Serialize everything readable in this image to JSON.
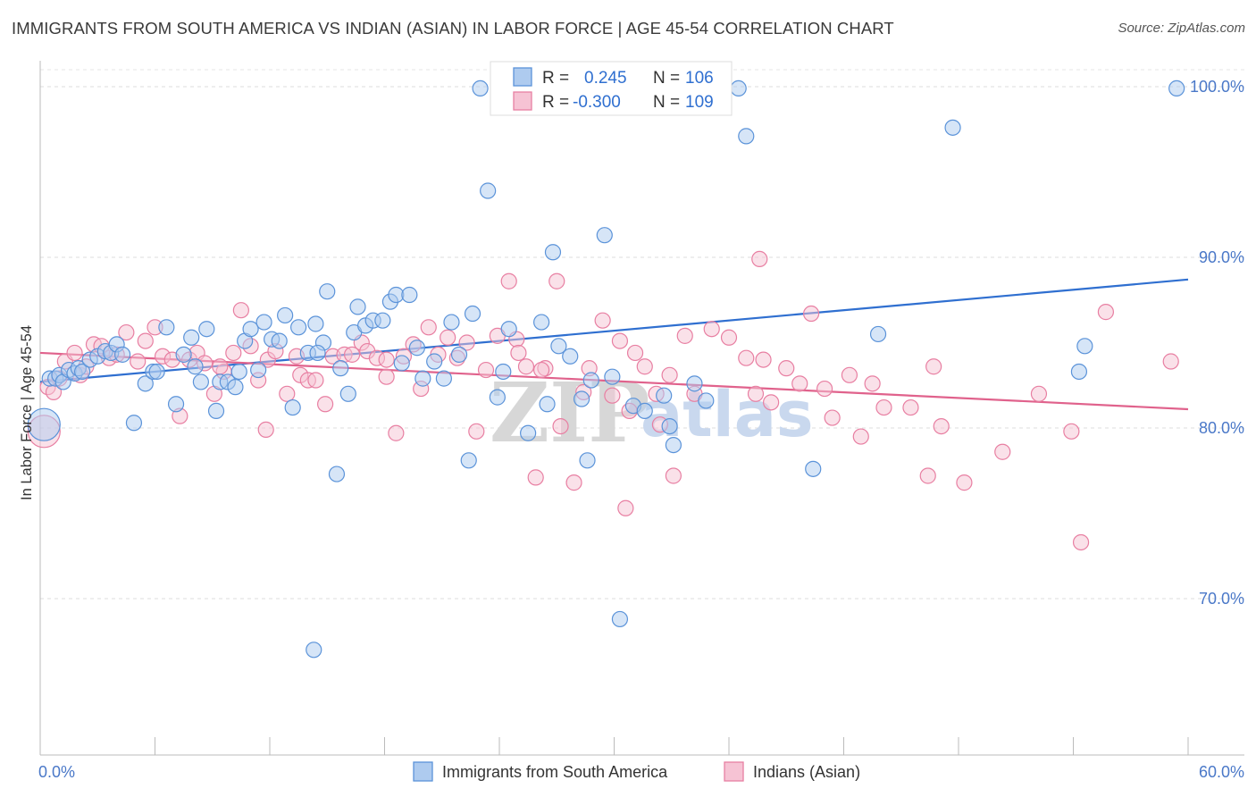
{
  "title": "IMMIGRANTS FROM SOUTH AMERICA VS INDIAN (ASIAN) IN LABOR FORCE | AGE 45-54 CORRELATION CHART",
  "source": "Source: ZipAtlas.com",
  "watermark": {
    "part1": "ZIP",
    "part2": "atlas"
  },
  "colors": {
    "blue": "#5b93d9",
    "blue_fill": "#aecbef",
    "blue_line": "#2f6fd0",
    "pink": "#e87fa2",
    "pink_fill": "#f6c3d4",
    "pink_line": "#e0628c",
    "tick_text": "#4a78c8",
    "grid": "#dddddd"
  },
  "legend": {
    "r_label": "R =",
    "n_label": "N =",
    "blue": {
      "r": "0.245",
      "n": "106"
    },
    "pink": {
      "r": "-0.300",
      "n": "109"
    }
  },
  "chart_data": {
    "type": "scatter",
    "xlabel": "",
    "ylabel": "In Labor Force | Age 45-54",
    "xlim": [
      0,
      60
    ],
    "ylim": [
      60,
      102
    ],
    "x_tick_labels": [
      "0.0%",
      "60.0%"
    ],
    "y_ticks": [
      70,
      80,
      90,
      100
    ],
    "y_tick_labels": [
      "70.0%",
      "80.0%",
      "90.0%",
      "100.0%"
    ],
    "grid": true,
    "legend_placement": "top-center",
    "series": [
      {
        "name": "Immigrants from South America",
        "color": "#5b93d9",
        "trend": {
          "x": [
            0,
            60
          ],
          "y": [
            82.7,
            88.7
          ]
        },
        "points": [
          [
            0.2,
            80.2
          ],
          [
            0.5,
            82.9
          ],
          [
            0.8,
            82.9
          ],
          [
            1.0,
            83.1
          ],
          [
            1.2,
            82.7
          ],
          [
            1.5,
            83.4
          ],
          [
            1.8,
            83.2
          ],
          [
            2.0,
            83.5
          ],
          [
            2.2,
            83.3
          ],
          [
            2.6,
            84.0
          ],
          [
            3.0,
            84.2
          ],
          [
            3.4,
            84.5
          ],
          [
            3.7,
            84.4
          ],
          [
            4.0,
            84.9
          ],
          [
            4.3,
            84.3
          ],
          [
            4.9,
            80.3
          ],
          [
            5.5,
            82.6
          ],
          [
            5.9,
            83.3
          ],
          [
            6.1,
            83.3
          ],
          [
            6.6,
            85.9
          ],
          [
            7.1,
            81.4
          ],
          [
            7.5,
            84.3
          ],
          [
            7.9,
            85.3
          ],
          [
            8.1,
            83.6
          ],
          [
            8.4,
            82.7
          ],
          [
            8.7,
            85.8
          ],
          [
            9.2,
            81.0
          ],
          [
            9.4,
            82.7
          ],
          [
            9.8,
            82.7
          ],
          [
            10.2,
            82.4
          ],
          [
            10.4,
            83.3
          ],
          [
            10.7,
            85.1
          ],
          [
            11.0,
            85.8
          ],
          [
            11.4,
            83.4
          ],
          [
            11.7,
            86.2
          ],
          [
            12.1,
            85.2
          ],
          [
            12.5,
            85.1
          ],
          [
            12.8,
            86.6
          ],
          [
            13.2,
            81.2
          ],
          [
            13.5,
            85.9
          ],
          [
            14.0,
            84.4
          ],
          [
            14.4,
            86.1
          ],
          [
            14.8,
            85.0
          ],
          [
            14.3,
            67.0
          ],
          [
            14.5,
            84.4
          ],
          [
            15.0,
            88.0
          ],
          [
            15.5,
            77.3
          ],
          [
            15.7,
            83.5
          ],
          [
            16.1,
            82.0
          ],
          [
            16.4,
            85.6
          ],
          [
            16.6,
            87.1
          ],
          [
            17.0,
            86.0
          ],
          [
            17.4,
            86.3
          ],
          [
            17.9,
            86.3
          ],
          [
            18.3,
            87.4
          ],
          [
            18.6,
            87.8
          ],
          [
            18.9,
            83.8
          ],
          [
            19.3,
            87.8
          ],
          [
            19.7,
            84.7
          ],
          [
            20.0,
            82.9
          ],
          [
            20.6,
            83.9
          ],
          [
            21.1,
            82.9
          ],
          [
            21.5,
            86.2
          ],
          [
            21.9,
            84.3
          ],
          [
            22.4,
            78.1
          ],
          [
            22.6,
            86.7
          ],
          [
            23.0,
            99.9
          ],
          [
            23.4,
            93.9
          ],
          [
            23.9,
            81.8
          ],
          [
            24.2,
            83.3
          ],
          [
            24.5,
            85.8
          ],
          [
            24.8,
            99.9
          ],
          [
            25.5,
            79.7
          ],
          [
            26.2,
            86.2
          ],
          [
            26.5,
            81.4
          ],
          [
            26.8,
            90.3
          ],
          [
            27.1,
            84.8
          ],
          [
            27.7,
            84.2
          ],
          [
            28.3,
            81.7
          ],
          [
            28.6,
            78.1
          ],
          [
            28.8,
            82.8
          ],
          [
            29.5,
            91.3
          ],
          [
            29.9,
            83.0
          ],
          [
            30.3,
            68.8
          ],
          [
            31.0,
            81.3
          ],
          [
            31.6,
            81.0
          ],
          [
            32.6,
            81.9
          ],
          [
            32.9,
            80.1
          ],
          [
            33.1,
            79.0
          ],
          [
            34.2,
            82.6
          ],
          [
            34.8,
            81.6
          ],
          [
            36.5,
            99.9
          ],
          [
            36.9,
            97.1
          ],
          [
            40.4,
            77.6
          ],
          [
            43.8,
            85.5
          ],
          [
            47.7,
            97.6
          ],
          [
            54.3,
            83.3
          ],
          [
            54.6,
            84.8
          ],
          [
            59.4,
            99.9
          ]
        ]
      },
      {
        "name": "Indians (Asian)",
        "color": "#e87fa2",
        "trend": {
          "x": [
            0,
            60
          ],
          "y": [
            84.4,
            81.1
          ]
        },
        "points": [
          [
            0.2,
            79.8
          ],
          [
            0.4,
            82.4
          ],
          [
            0.7,
            82.1
          ],
          [
            1.0,
            82.9
          ],
          [
            1.3,
            83.9
          ],
          [
            1.8,
            84.4
          ],
          [
            2.1,
            83.1
          ],
          [
            2.4,
            83.6
          ],
          [
            2.8,
            84.9
          ],
          [
            3.2,
            84.8
          ],
          [
            3.6,
            84.1
          ],
          [
            4.0,
            84.3
          ],
          [
            4.5,
            85.6
          ],
          [
            5.1,
            83.9
          ],
          [
            5.5,
            85.1
          ],
          [
            6.0,
            85.9
          ],
          [
            6.4,
            84.2
          ],
          [
            6.9,
            84.0
          ],
          [
            7.3,
            80.7
          ],
          [
            7.8,
            84.0
          ],
          [
            8.2,
            84.4
          ],
          [
            8.6,
            83.8
          ],
          [
            9.1,
            82.0
          ],
          [
            9.6,
            83.3
          ],
          [
            10.1,
            84.4
          ],
          [
            10.5,
            86.9
          ],
          [
            11.0,
            84.8
          ],
          [
            11.4,
            82.8
          ],
          [
            11.9,
            84.0
          ],
          [
            12.3,
            84.5
          ],
          [
            12.9,
            82.0
          ],
          [
            13.4,
            84.2
          ],
          [
            13.6,
            83.1
          ],
          [
            14.0,
            82.8
          ],
          [
            14.4,
            82.8
          ],
          [
            14.9,
            81.4
          ],
          [
            15.3,
            84.2
          ],
          [
            15.9,
            84.3
          ],
          [
            16.3,
            84.3
          ],
          [
            16.8,
            85.0
          ],
          [
            17.1,
            84.5
          ],
          [
            17.6,
            84.1
          ],
          [
            18.1,
            83.0
          ],
          [
            18.6,
            79.7
          ],
          [
            19.0,
            84.2
          ],
          [
            19.5,
            84.9
          ],
          [
            19.9,
            82.3
          ],
          [
            20.3,
            85.9
          ],
          [
            20.8,
            84.3
          ],
          [
            21.3,
            85.3
          ],
          [
            21.8,
            84.1
          ],
          [
            22.3,
            85.0
          ],
          [
            22.8,
            79.8
          ],
          [
            23.3,
            83.4
          ],
          [
            23.9,
            85.4
          ],
          [
            24.5,
            88.6
          ],
          [
            24.9,
            85.2
          ],
          [
            25.4,
            83.6
          ],
          [
            25.9,
            77.1
          ],
          [
            26.4,
            83.5
          ],
          [
            27.0,
            88.6
          ],
          [
            27.2,
            80.1
          ],
          [
            27.9,
            76.8
          ],
          [
            28.4,
            82.1
          ],
          [
            28.7,
            83.5
          ],
          [
            29.4,
            86.3
          ],
          [
            29.9,
            81.9
          ],
          [
            30.3,
            85.1
          ],
          [
            30.6,
            75.3
          ],
          [
            31.1,
            84.4
          ],
          [
            31.6,
            83.6
          ],
          [
            32.2,
            82.0
          ],
          [
            32.9,
            83.1
          ],
          [
            33.1,
            77.2
          ],
          [
            33.7,
            85.4
          ],
          [
            34.2,
            82.0
          ],
          [
            35.1,
            85.8
          ],
          [
            36.0,
            85.3
          ],
          [
            36.9,
            84.1
          ],
          [
            37.4,
            82.0
          ],
          [
            37.8,
            84.0
          ],
          [
            38.2,
            81.5
          ],
          [
            39.0,
            83.5
          ],
          [
            39.7,
            82.6
          ],
          [
            40.3,
            86.7
          ],
          [
            41.0,
            82.3
          ],
          [
            41.4,
            80.6
          ],
          [
            42.3,
            83.1
          ],
          [
            42.9,
            79.5
          ],
          [
            43.5,
            82.6
          ],
          [
            44.1,
            81.2
          ],
          [
            45.5,
            81.2
          ],
          [
            46.4,
            77.2
          ],
          [
            46.7,
            83.6
          ],
          [
            47.1,
            80.1
          ],
          [
            48.3,
            76.8
          ],
          [
            50.3,
            78.6
          ],
          [
            52.2,
            82.0
          ],
          [
            53.9,
            79.8
          ],
          [
            54.4,
            73.3
          ],
          [
            55.7,
            86.8
          ],
          [
            59.1,
            83.9
          ],
          [
            37.6,
            89.9
          ],
          [
            32.4,
            80.2
          ],
          [
            30.8,
            81.0
          ],
          [
            26.2,
            83.4
          ],
          [
            25.0,
            84.4
          ],
          [
            18.1,
            84.0
          ],
          [
            11.8,
            79.9
          ],
          [
            9.4,
            83.6
          ]
        ]
      }
    ]
  },
  "bottom_legend": [
    "Immigrants from South America",
    "Indians (Asian)"
  ]
}
